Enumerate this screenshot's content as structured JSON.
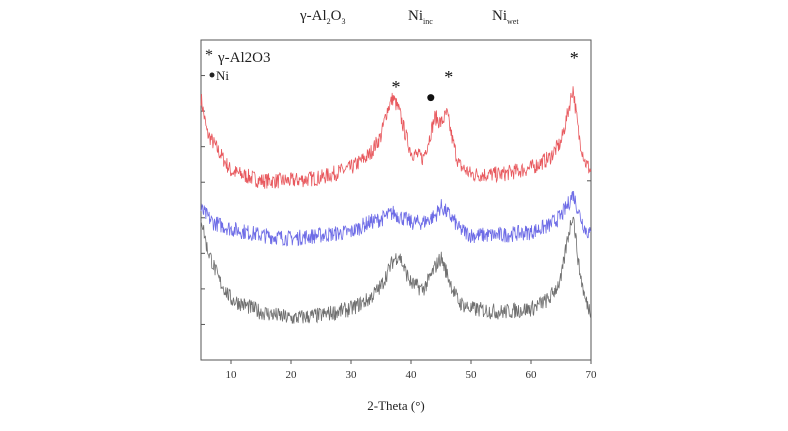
{
  "header": {
    "gamma_prefix": "γ-Al",
    "gamma_sub1": "2",
    "gamma_mid": "O",
    "gamma_sub2": "3",
    "ni_inc_main": "Ni",
    "ni_inc_sub": "inc",
    "ni_wet_main": "Ni",
    "ni_wet_sub": "wet"
  },
  "legend": {
    "star_symbol": "*",
    "star_label": "γ-Al2O3",
    "dot_label": "Ni"
  },
  "chart_data": {
    "type": "line",
    "title": "",
    "xlabel": "2-Theta (°)",
    "ylabel": "",
    "xlim": [
      5,
      70
    ],
    "ylim": [
      0,
      100
    ],
    "xticks": [
      10,
      20,
      30,
      40,
      50,
      60,
      70
    ],
    "y_minor_ticks": 8,
    "series": [
      {
        "name": "gamma-Al2O3",
        "color": "#e8595e",
        "offset": 56,
        "noise": 5,
        "x": [
          5,
          6,
          10,
          15,
          20,
          25,
          30,
          33,
          35,
          36,
          37,
          38,
          39,
          40,
          42,
          43,
          44,
          45,
          46,
          47,
          48,
          50,
          55,
          60,
          63,
          65,
          66,
          67,
          68,
          69,
          70
        ],
        "values": [
          26,
          15,
          3,
          0,
          0,
          1,
          4,
          8,
          14,
          22,
          26,
          22,
          15,
          9,
          7,
          13,
          20,
          18,
          21,
          12,
          5,
          2,
          2,
          4,
          7,
          12,
          20,
          29,
          14,
          6,
          3
        ]
      },
      {
        "name": "Ni-inc",
        "color": "#6d6be6",
        "offset": 36,
        "noise": 5,
        "x": [
          5,
          7,
          10,
          15,
          20,
          25,
          30,
          33,
          35,
          37,
          38,
          40,
          42,
          44,
          45,
          46,
          47,
          48,
          50,
          55,
          60,
          63,
          65,
          66,
          67,
          68,
          69,
          70
        ],
        "values": [
          11,
          7,
          5,
          3,
          2,
          3,
          4,
          7,
          8,
          10,
          9,
          7,
          7,
          9,
          12,
          10,
          8,
          5,
          3,
          3,
          4,
          6,
          9,
          12,
          16,
          10,
          5,
          3
        ]
      },
      {
        "name": "Ni-wet",
        "color": "#6f6f6f",
        "offset": 13,
        "noise": 5,
        "x": [
          5,
          6,
          8,
          10,
          15,
          20,
          25,
          30,
          33,
          35,
          37,
          38,
          39,
          40,
          42,
          43,
          44,
          45,
          46,
          47,
          48,
          50,
          55,
          60,
          63,
          65,
          66,
          67,
          68,
          69,
          70
        ],
        "values": [
          32,
          22,
          12,
          6,
          2,
          0,
          1,
          3,
          6,
          10,
          18,
          20,
          15,
          11,
          9,
          12,
          16,
          19,
          14,
          9,
          5,
          3,
          2,
          3,
          6,
          12,
          24,
          33,
          16,
          6,
          2
        ]
      }
    ],
    "annotations": [
      {
        "symbol": "*",
        "x": 37.5,
        "y": 86
      },
      {
        "symbol": "●",
        "x": 43.3,
        "y": 82
      },
      {
        "symbol": "*",
        "x": 46.3,
        "y": 89
      },
      {
        "symbol": "*",
        "x": 67.2,
        "y": 95
      }
    ]
  }
}
